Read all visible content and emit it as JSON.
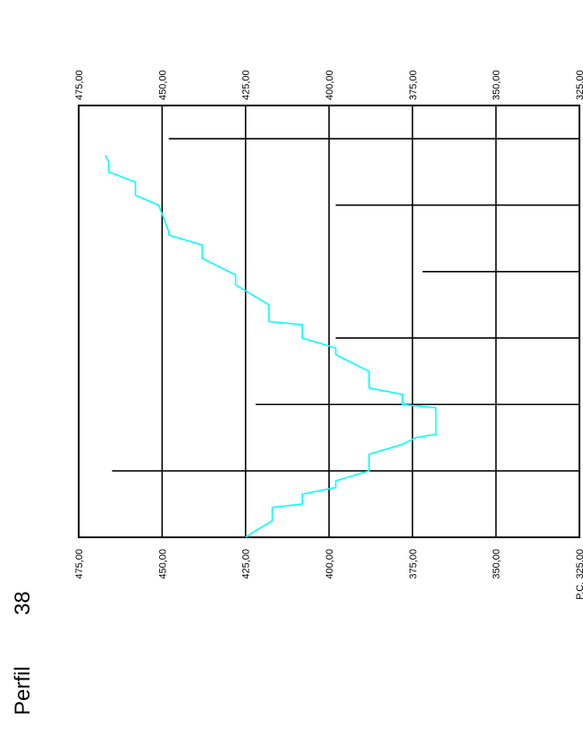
{
  "title": {
    "word": "Perfil",
    "number": "38"
  },
  "chart_data": {
    "type": "line",
    "title": "Perfil 38",
    "axis": {
      "min": 325,
      "max": 475,
      "ticks": [
        475,
        450,
        425,
        400,
        375,
        350,
        325
      ],
      "top_tick_labels": [
        "475,00",
        "450,00",
        "425,00",
        "400,00",
        "375,00",
        "350,00",
        "325,00"
      ],
      "bottom_tick_labels": [
        "475,00",
        "450,00",
        "425,00",
        "400,00",
        "375,00",
        "350,00",
        "P.C. 325,00"
      ]
    },
    "profile_length": 130,
    "stations": [
      20,
      40,
      60,
      80,
      100,
      120
    ],
    "station_levels": [
      465,
      422,
      398,
      372,
      398,
      448
    ],
    "series": [
      {
        "color": "#00ffff",
        "points": [
          [
            0,
            425
          ],
          [
            2,
            422
          ],
          [
            5,
            417
          ],
          [
            9,
            417
          ],
          [
            10,
            408
          ],
          [
            13,
            408
          ],
          [
            15,
            398
          ],
          [
            17,
            398
          ],
          [
            20,
            388
          ],
          [
            25,
            388
          ],
          [
            28,
            378
          ],
          [
            30,
            374
          ],
          [
            31,
            368
          ],
          [
            39,
            368
          ],
          [
            40,
            378
          ],
          [
            43,
            378
          ],
          [
            45,
            388
          ],
          [
            50,
            388
          ],
          [
            55,
            398
          ],
          [
            57,
            398
          ],
          [
            60,
            408
          ],
          [
            64,
            408
          ],
          [
            65,
            418
          ],
          [
            70,
            418
          ],
          [
            76,
            428
          ],
          [
            79,
            428
          ],
          [
            84,
            438
          ],
          [
            88,
            438
          ],
          [
            91,
            448
          ],
          [
            92,
            448
          ],
          [
            100,
            451
          ],
          [
            103,
            458
          ],
          [
            107,
            458
          ],
          [
            110,
            466
          ],
          [
            113,
            466
          ],
          [
            115,
            467
          ]
        ]
      }
    ],
    "grid": true
  }
}
